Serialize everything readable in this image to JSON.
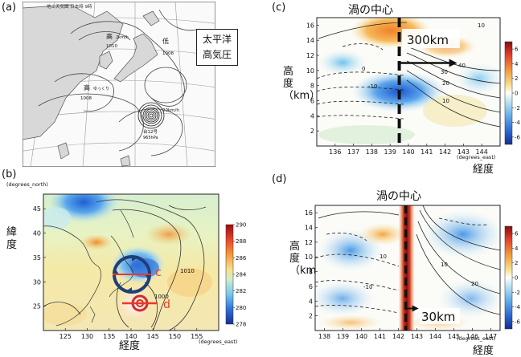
{
  "panel_a": {
    "label": "(a)",
    "header": "地上天気図 日本時 9時",
    "callout_line1": "太平洋",
    "callout_line2": "高気圧",
    "high_west_label": "高",
    "high_west_value": "1010",
    "high_west_extra": "2km/h",
    "high_sw_label": "高",
    "high_sw_value": "1008",
    "high_sw_extra": "ゆっくり",
    "low_label": "低",
    "low_value": "1008",
    "typhoon_speed": "20km/h",
    "typhoon_name": "台12号",
    "typhoon_pressure": "965hPa"
  },
  "panel_b": {
    "label": "(b)",
    "ylabel_unit": "(degrees_north)",
    "xlabel_unit": "(degrees_east)",
    "ylabel": "緯度",
    "xlabel": "経度",
    "line_c": "c",
    "line_d": "d",
    "contour_labels": [
      "1010",
      "1000"
    ],
    "colorbar_ticks": [
      "290",
      "288",
      "286",
      "284",
      "282",
      "280",
      "278"
    ]
  },
  "panel_c": {
    "label": "(c)",
    "title": "渦の中心",
    "ylabel": "高度（km）",
    "xlabel_unit": "(degrees_east)",
    "xlabel": "経度",
    "distance": "300km",
    "contour_labels": [
      "10",
      "20",
      "30",
      "40",
      "10",
      "-10",
      "0"
    ],
    "colorbar_ticks": [
      "6",
      "4",
      "2",
      "0",
      "-2",
      "-4",
      "-6"
    ]
  },
  "panel_d": {
    "label": "(d)",
    "title": "渦の中心",
    "ylabel": "高度（km）",
    "xlabel_unit": "(degrees_east)",
    "xlabel": "経度",
    "distance": "30km",
    "contour_labels": [
      "10",
      "-10",
      "20",
      "10"
    ],
    "colorbar_ticks": [
      "6",
      "4",
      "2",
      "0",
      "-2",
      "-4",
      "-6"
    ]
  },
  "chart_data": [
    {
      "type": "heatmap",
      "panel": "b",
      "xlabel": "経度",
      "ylabel": "緯度",
      "xlim": [
        120,
        160
      ],
      "ylim": [
        20,
        48
      ],
      "x_ticks": [
        125,
        130,
        135,
        140,
        145,
        150,
        155
      ],
      "y_ticks": [
        25,
        30,
        35,
        40,
        45
      ],
      "colorbar": {
        "min": 278,
        "max": 290,
        "ticks": [
          290,
          288,
          286,
          284,
          282,
          280,
          278
        ]
      },
      "annotations": [
        {
          "label": "c",
          "lat": 32,
          "lon_range": [
            136,
            144
          ]
        },
        {
          "label": "d",
          "lat": 24,
          "lon_range": [
            138,
            147
          ]
        }
      ]
    },
    {
      "type": "heatmap",
      "panel": "c",
      "title": "渦の中心",
      "xlabel": "経度",
      "ylabel": "高度（km）",
      "xlim": [
        135,
        145
      ],
      "ylim": [
        0,
        17
      ],
      "x_ticks": [
        136,
        137,
        138,
        139,
        140,
        141,
        142,
        143,
        144
      ],
      "y_ticks": [
        2,
        4,
        6,
        8,
        10,
        12,
        14,
        16
      ],
      "center_lon": 139.5,
      "arrow_altitude_km": 11,
      "arrow_length": "300km",
      "colorbar": {
        "min": -7,
        "max": 7,
        "ticks": [
          6,
          4,
          2,
          0,
          -2,
          -4,
          -6
        ]
      }
    },
    {
      "type": "heatmap",
      "panel": "d",
      "title": "渦の中心",
      "xlabel": "経度",
      "ylabel": "高度（km）",
      "xlim": [
        137.5,
        147.5
      ],
      "ylim": [
        0,
        17
      ],
      "x_ticks": [
        138,
        139,
        140,
        141,
        142,
        143,
        144,
        145,
        146,
        147
      ],
      "y_ticks": [
        2,
        4,
        6,
        8,
        10,
        12,
        14,
        16
      ],
      "center_lon": 142.4,
      "arrow_altitude_km": 3,
      "arrow_length": "30km",
      "colorbar": {
        "min": -7,
        "max": 7,
        "ticks": [
          6,
          4,
          2,
          0,
          -2,
          -4,
          -6
        ]
      }
    }
  ]
}
